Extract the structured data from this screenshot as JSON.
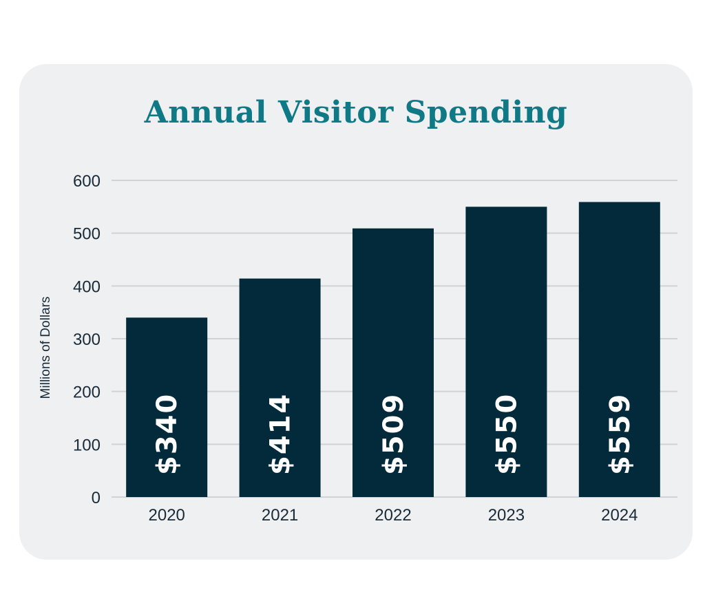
{
  "chart_data": {
    "type": "bar",
    "title": "Annual Visitor Spending",
    "ylabel": "Millions of Dollars",
    "xlabel": "",
    "categories": [
      "2020",
      "2021",
      "2022",
      "2023",
      "2024"
    ],
    "values": [
      340,
      414,
      509,
      550,
      559
    ],
    "data_labels": [
      "$340",
      "$414",
      "$509",
      "$550",
      "$559"
    ],
    "ylim": [
      0,
      600
    ],
    "yticks": [
      "0",
      "100",
      "200",
      "300",
      "400",
      "500",
      "600"
    ],
    "grid": true,
    "legend": "none"
  },
  "colors": {
    "title": "#0f7a85",
    "bar": "#032a3b",
    "gridline": "#cfd2d6",
    "card_background": "#eff0f2"
  }
}
